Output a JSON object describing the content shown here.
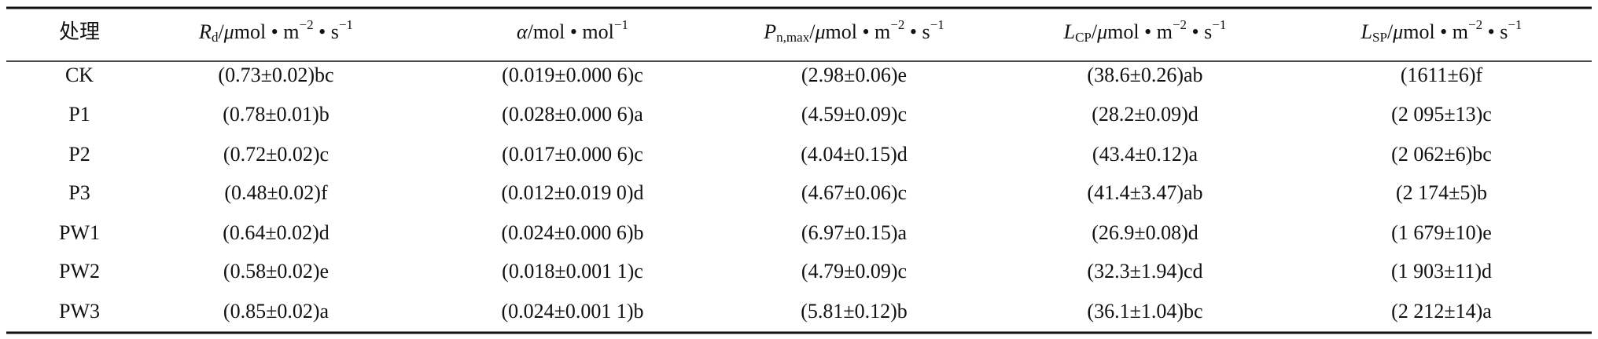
{
  "table": {
    "header": [
      [
        {
          "t": "处理"
        }
      ],
      [
        {
          "t": "R",
          "style": "i"
        },
        {
          "t": "d",
          "style": "sub"
        },
        {
          "t": "/"
        },
        {
          "t": "μ",
          "style": "i"
        },
        {
          "t": "mol • m"
        },
        {
          "t": "−2",
          "style": "sup"
        },
        {
          "t": " • s"
        },
        {
          "t": "−1",
          "style": "sup"
        }
      ],
      [
        {
          "t": "α",
          "style": "i"
        },
        {
          "t": "/mol • mol"
        },
        {
          "t": "−1",
          "style": "sup"
        }
      ],
      [
        {
          "t": "P",
          "style": "i"
        },
        {
          "t": "n,max",
          "style": "sub"
        },
        {
          "t": "/"
        },
        {
          "t": "μ",
          "style": "i"
        },
        {
          "t": "mol • m"
        },
        {
          "t": "−2",
          "style": "sup"
        },
        {
          "t": " • s"
        },
        {
          "t": "−1",
          "style": "sup"
        }
      ],
      [
        {
          "t": "L",
          "style": "i"
        },
        {
          "t": "CP",
          "style": "sub"
        },
        {
          "t": "/"
        },
        {
          "t": "μ",
          "style": "i"
        },
        {
          "t": "mol • m"
        },
        {
          "t": "−2",
          "style": "sup"
        },
        {
          "t": " • s"
        },
        {
          "t": "−1",
          "style": "sup"
        }
      ],
      [
        {
          "t": "L",
          "style": "i"
        },
        {
          "t": "SP",
          "style": "sub"
        },
        {
          "t": "/"
        },
        {
          "t": "μ",
          "style": "i"
        },
        {
          "t": "mol • m"
        },
        {
          "t": "−2",
          "style": "sup"
        },
        {
          "t": " • s"
        },
        {
          "t": "−1",
          "style": "sup"
        }
      ]
    ],
    "rows": [
      [
        "CK",
        "(0.73±0.02)bc",
        "(0.019±0.000 6)c",
        "(2.98±0.06)e",
        "(38.6±0.26)ab",
        "(1611±6)f"
      ],
      [
        "P1",
        "(0.78±0.01)b",
        "(0.028±0.000 6)a",
        "(4.59±0.09)c",
        "(28.2±0.09)d",
        "(2 095±13)c"
      ],
      [
        "P2",
        "(0.72±0.02)c",
        "(0.017±0.000 6)c",
        "(4.04±0.15)d",
        "(43.4±0.12)a",
        "(2 062±6)bc"
      ],
      [
        "P3",
        "(0.48±0.02)f",
        "(0.012±0.019 0)d",
        "(4.67±0.06)c",
        "(41.4±3.47)ab",
        "(2 174±5)b"
      ],
      [
        "PW1",
        "(0.64±0.02)d",
        "(0.024±0.000 6)b",
        "(6.97±0.15)a",
        "(26.9±0.08)d",
        "(1 679±10)e"
      ],
      [
        "PW2",
        "(0.58±0.02)e",
        "(0.018±0.001 1)c",
        "(4.79±0.09)c",
        "(32.3±1.94)cd",
        "(1 903±11)d"
      ],
      [
        "PW3",
        "(0.85±0.02)a",
        "(0.024±0.001 1)b",
        "(5.81±0.12)b",
        "(36.1±1.04)bc",
        "(2 212±14)a"
      ]
    ]
  }
}
